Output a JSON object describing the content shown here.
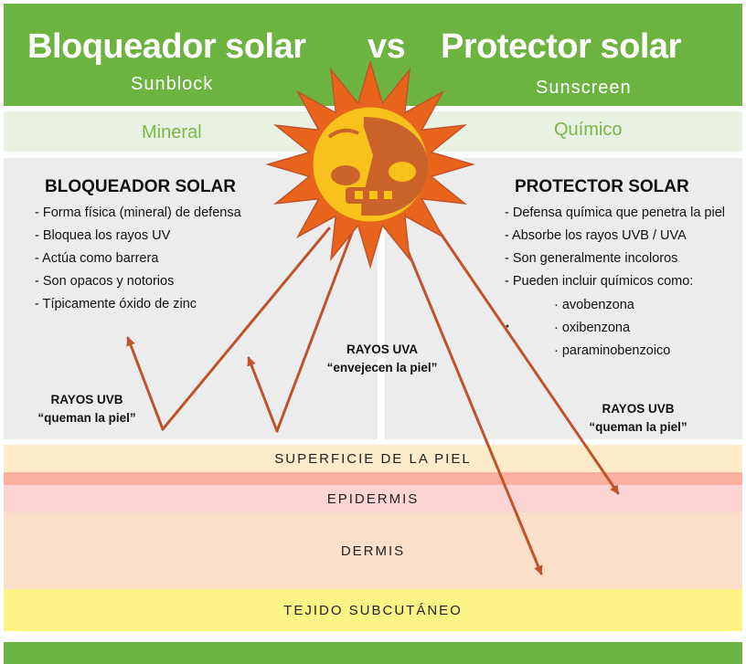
{
  "header": {
    "left_title": "Bloqueador solar",
    "vs": "vs",
    "right_title": "Protector solar",
    "left_subtitle": "Sunblock",
    "right_subtitle": "Sunscreen"
  },
  "band": {
    "left_label": "Mineral",
    "right_label": "Químico"
  },
  "left_panel": {
    "title": "BLOQUEADOR SOLAR",
    "items": [
      "- Forma física (mineral) de defensa",
      "- Bloquea los rayos UV",
      "- Actúa como barrera",
      "- Son opacos y notorios",
      "- Típicamente óxido de zinc"
    ]
  },
  "right_panel": {
    "title": "PROTECTOR SOLAR",
    "items": [
      "- Defensa química que penetra la piel",
      "- Absorbe los rayos UVB / UVA",
      "- Son generalmente incoloros",
      "- Pueden incluir químicos como:"
    ],
    "chemicals": [
      "· avobenzona",
      "· oxibenzona",
      "· paraminobenzoico"
    ]
  },
  "rays": {
    "uvb_left": {
      "name": "RAYOS UVB",
      "effect": "“queman la piel”"
    },
    "uva": {
      "name": "RAYOS UVA",
      "effect": "“envejecen la piel”"
    },
    "uvb_right": {
      "name": "RAYOS UVB",
      "effect": "“queman la piel”"
    }
  },
  "layers": {
    "surface": "SUPERFICIE DE LA PIEL",
    "epidermis": "EPIDERMIS",
    "dermis": "DERMIS",
    "subcutaneous": "TEJIDO SUBCUTÁNEO"
  },
  "colors": {
    "header_green": "#6db33f",
    "band_bg": "#e9f1e3",
    "band_text": "#7ab648",
    "panel_bg": "#ececec",
    "arrow": "#c0532c",
    "sun_rays": "#e8641c",
    "sun_body": "#f8c11c",
    "sun_face": "#c9632a",
    "surface": "#fdebc9",
    "surface_line": "#fbb0a0",
    "epidermis": "#fcd4d4",
    "dermis": "#fbdfc9",
    "subcutaneous": "#fbf383"
  }
}
